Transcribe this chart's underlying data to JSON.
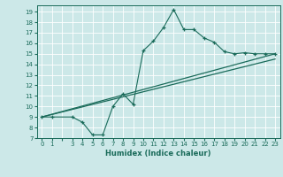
{
  "title": "",
  "xlabel": "Humidex (Indice chaleur)",
  "ylabel": "",
  "bg_color": "#cce8e8",
  "line_color": "#1a6b5a",
  "xlim": [
    -0.5,
    23.5
  ],
  "ylim": [
    7,
    19.6
  ],
  "xticks": [
    0,
    1,
    3,
    4,
    5,
    6,
    7,
    8,
    9,
    10,
    11,
    12,
    13,
    14,
    15,
    16,
    17,
    18,
    19,
    20,
    21,
    22,
    23
  ],
  "yticks": [
    7,
    8,
    9,
    10,
    11,
    12,
    13,
    14,
    15,
    16,
    17,
    18,
    19
  ],
  "main_x": [
    0,
    1,
    3,
    4,
    5,
    6,
    7,
    8,
    9,
    10,
    11,
    12,
    13,
    14,
    15,
    16,
    17,
    18,
    19,
    20,
    21,
    22,
    23
  ],
  "main_y": [
    9,
    9,
    9,
    8.5,
    7.3,
    7.3,
    10,
    11.2,
    10.2,
    15.3,
    16.2,
    17.5,
    19.2,
    17.3,
    17.3,
    16.5,
    16.1,
    15.2,
    15.0,
    15.1,
    15.0,
    15.0,
    15.0
  ],
  "line2_x": [
    0,
    23
  ],
  "line2_y": [
    9.0,
    14.5
  ],
  "line3_x": [
    0,
    23
  ],
  "line3_y": [
    9.0,
    15.0
  ],
  "grid_color": "#b8d8d8",
  "white_grid": "#ffffff"
}
